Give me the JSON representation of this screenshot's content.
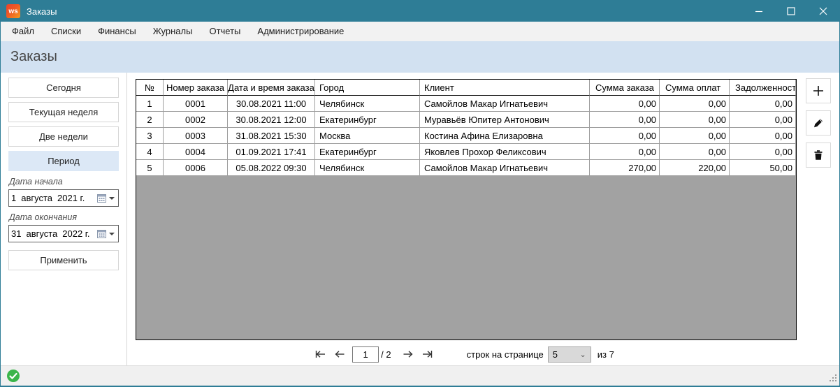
{
  "window": {
    "title": "Заказы",
    "app_icon": {
      "name": "ws-app-icon",
      "text": "ws"
    }
  },
  "menu": {
    "items": [
      "Файл",
      "Списки",
      "Финансы",
      "Журналы",
      "Отчеты",
      "Администрирование"
    ]
  },
  "page": {
    "title": "Заказы"
  },
  "sidebar": {
    "filters": [
      {
        "label": "Сегодня",
        "selected": false
      },
      {
        "label": "Текущая неделя",
        "selected": false
      },
      {
        "label": "Две недели",
        "selected": false
      },
      {
        "label": "Период",
        "selected": true
      }
    ],
    "date_start": {
      "label": "Дата начала",
      "day": "1",
      "month": "августа",
      "year": "2021 г."
    },
    "date_end": {
      "label": "Дата окончания",
      "day": "31",
      "month": "августа",
      "year": "2022 г."
    },
    "apply_label": "Применить"
  },
  "table": {
    "columns": [
      "№",
      "Номер заказа",
      "Дата и время заказа",
      "Город",
      "Клиент",
      "Сумма заказа",
      "Сумма оплат",
      "Задолженность"
    ],
    "rows": [
      [
        "1",
        "0001",
        "30.08.2021 11:00",
        "Челябинск",
        "Самойлов Макар Игнатьевич",
        "0,00",
        "0,00",
        "0,00"
      ],
      [
        "2",
        "0002",
        "30.08.2021 12:00",
        "Екатеринбург",
        "Муравьёв Юпитер Антонович",
        "0,00",
        "0,00",
        "0,00"
      ],
      [
        "3",
        "0003",
        "31.08.2021 15:30",
        "Москва",
        "Костина Афина Елизаровна",
        "0,00",
        "0,00",
        "0,00"
      ],
      [
        "4",
        "0004",
        "01.09.2021 17:41",
        "Екатеринбург",
        "Яковлев Прохор Феликсович",
        "0,00",
        "0,00",
        "0,00"
      ],
      [
        "5",
        "0006",
        "05.08.2022 09:30",
        "Челябинск",
        "Самойлов Макар Игнатьевич",
        "270,00",
        "220,00",
        "50,00"
      ]
    ]
  },
  "toolbar": {
    "icons": [
      "plus-icon",
      "pencil-icon",
      "trash-icon"
    ]
  },
  "pagination": {
    "current_page": "1",
    "page_total": "/ 2",
    "rows_per_page_label": "строк на странице",
    "rows_per_page": "5",
    "total_rows_label": "из 7",
    "icons": [
      "first-page-icon",
      "prev-page-icon",
      "next-page-icon",
      "last-page-icon"
    ]
  },
  "status": {
    "icon": "green-check-icon"
  },
  "colors": {
    "titlebar": "#2E7D96",
    "page_header_bg": "#D2E1F1",
    "selected_filter_bg": "#DCE8F6",
    "table_empty_bg": "#A2A2A2",
    "status_ok": "#3BB54A",
    "app_icon_bg": "#EF5A24"
  }
}
